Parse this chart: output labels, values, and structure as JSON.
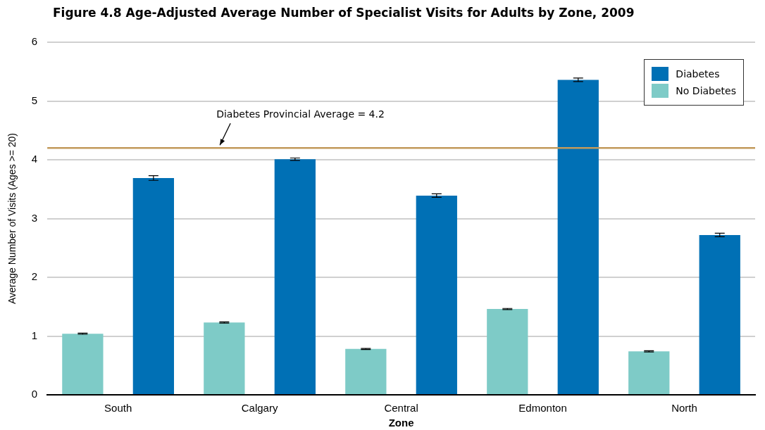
{
  "chart_data": {
    "type": "bar",
    "title": "Figure 4.8  Age-Adjusted Average Number of Specialist Visits for Adults by Zone, 2009",
    "xlabel": "Zone",
    "ylabel": "Average Number of Visits (Ages >= 20)",
    "categories": [
      "South",
      "Calgary",
      "Central",
      "Edmonton",
      "North"
    ],
    "series": [
      {
        "name": "No Diabetes",
        "color": "#7ecbc7",
        "values": [
          1.04,
          1.23,
          0.78,
          1.46,
          0.74
        ],
        "errors": [
          0.01,
          0.01,
          0.01,
          0.01,
          0.01
        ]
      },
      {
        "name": "Diabetes",
        "color": "#0070b5",
        "values": [
          3.69,
          4.01,
          3.39,
          5.36,
          2.72
        ],
        "errors": [
          0.04,
          0.02,
          0.03,
          0.03,
          0.03
        ]
      }
    ],
    "ylim": [
      0,
      6
    ],
    "yticks": [
      0,
      1,
      2,
      3,
      4,
      5,
      6
    ],
    "grid": "y",
    "legend": "top right",
    "ref_lines": [
      {
        "axis": "y",
        "value": 4.2,
        "label": "Diabetes Provincial Average = 4.2",
        "color": "#c29a5b"
      }
    ]
  }
}
